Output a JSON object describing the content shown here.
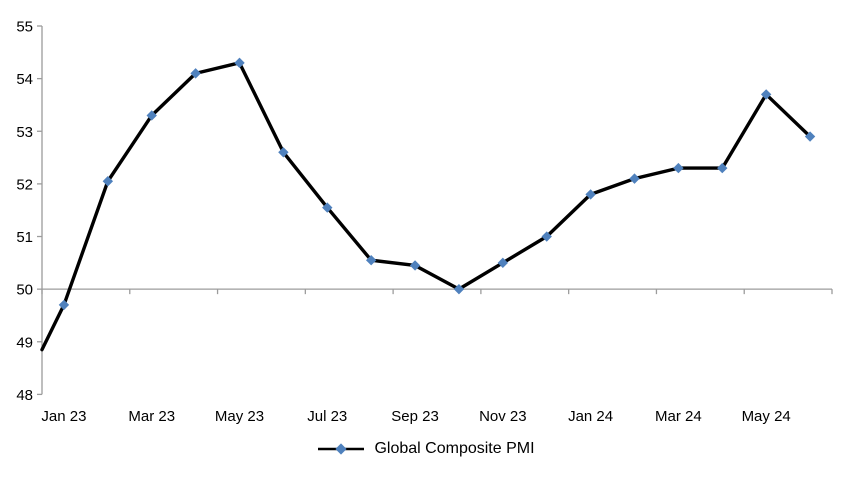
{
  "chart_data": {
    "type": "line",
    "title": "",
    "categories": [
      "Jan 23",
      "Feb 23",
      "Mar 23",
      "Apr 23",
      "May 23",
      "Jun 23",
      "Jul 23",
      "Aug 23",
      "Sep 23",
      "Oct 23",
      "Nov 23",
      "Dec 23",
      "Jan 24",
      "Feb 24",
      "Mar 24",
      "Apr 24",
      "May 24",
      "Jun 24"
    ],
    "series": [
      {
        "name": "Global Composite PMI",
        "values": [
          49.7,
          52.05,
          53.3,
          54.1,
          54.3,
          52.6,
          51.55,
          50.55,
          50.45,
          50.0,
          50.5,
          51.0,
          51.8,
          52.1,
          52.3,
          52.3,
          53.7,
          52.9
        ],
        "line_color": "#000000",
        "marker": "diamond",
        "marker_color": "#4F81BD"
      }
    ],
    "line_enters_left_edge_at_value": 48.85,
    "ylim": [
      48,
      55
    ],
    "y_ticks": [
      "48",
      "49",
      "50",
      "51",
      "52",
      "53",
      "54",
      "55"
    ],
    "x_tick_labels": [
      "Jan 23",
      "Mar 23",
      "May 23",
      "Jul 23",
      "Sep 23",
      "Nov 23",
      "Jan 24",
      "Mar 24",
      "May 24"
    ],
    "x_axis_cross_value": 50,
    "grid": "off",
    "legend_position": "bottom-center",
    "axis_color": "#9C9C9C",
    "text_color": "#000000",
    "background_color": "#FFFFFF",
    "xlabel": "",
    "ylabel": ""
  }
}
